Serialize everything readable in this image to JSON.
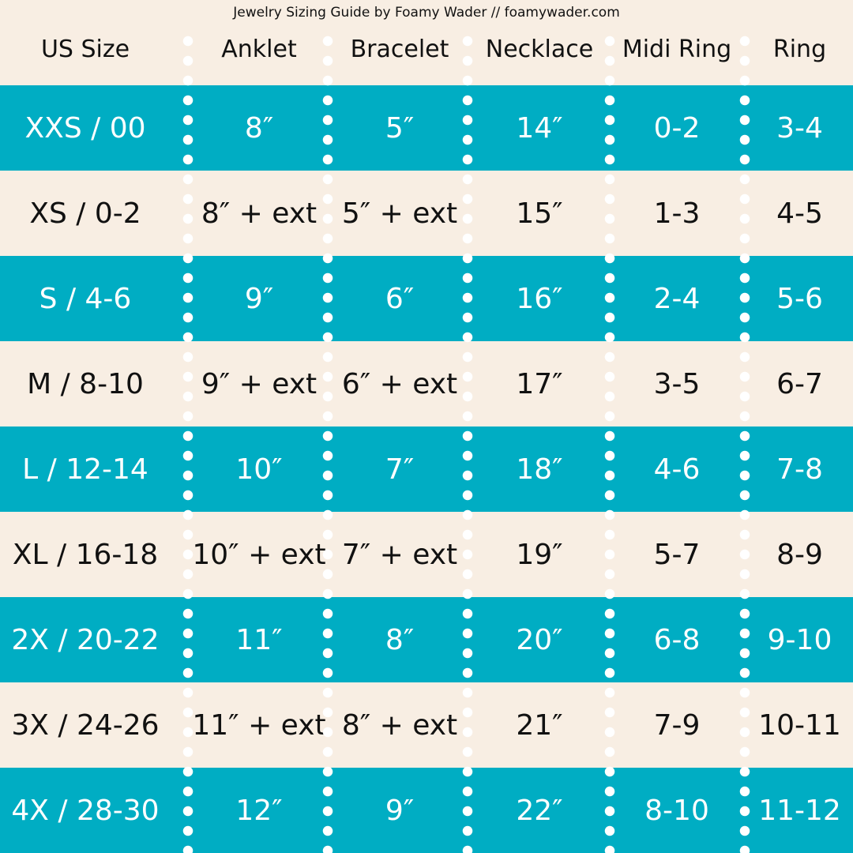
{
  "title": "Jewelry Sizing Guide by Foamy Wader // foamywader.com",
  "colors": {
    "teal": "#00ADC3",
    "cream": "#F8EEE3",
    "divider_dots": "#FFFFFF"
  },
  "headers": [
    "US Size",
    "Anklet",
    "Bracelet",
    "Necklace",
    "Midi Ring",
    "Ring"
  ],
  "rows": [
    [
      "XXS / 00",
      "8″",
      "5″",
      "14″",
      "0-2",
      "3-4"
    ],
    [
      "XS / 0-2",
      "8″ + ext",
      "5″ + ext",
      "15″",
      "1-3",
      "4-5"
    ],
    [
      "S / 4-6",
      "9″",
      "6″",
      "16″",
      "2-4",
      "5-6"
    ],
    [
      "M / 8-10",
      "9″ + ext",
      "6″ + ext",
      "17″",
      "3-5",
      "6-7"
    ],
    [
      "L / 12-14",
      "10″",
      "7″",
      "18″",
      "4-6",
      "7-8"
    ],
    [
      "XL / 16-18",
      "10″ + ext",
      "7″ + ext",
      "19″",
      "5-7",
      "8-9"
    ],
    [
      "2X / 20-22",
      "11″",
      "8″",
      "20″",
      "6-8",
      "9-10"
    ],
    [
      "3X / 24-26",
      "11″ + ext",
      "8″ + ext",
      "21″",
      "7-9",
      "10-11"
    ],
    [
      "4X / 28-30",
      "12″",
      "9″",
      "22″",
      "8-10",
      "11-12"
    ]
  ]
}
